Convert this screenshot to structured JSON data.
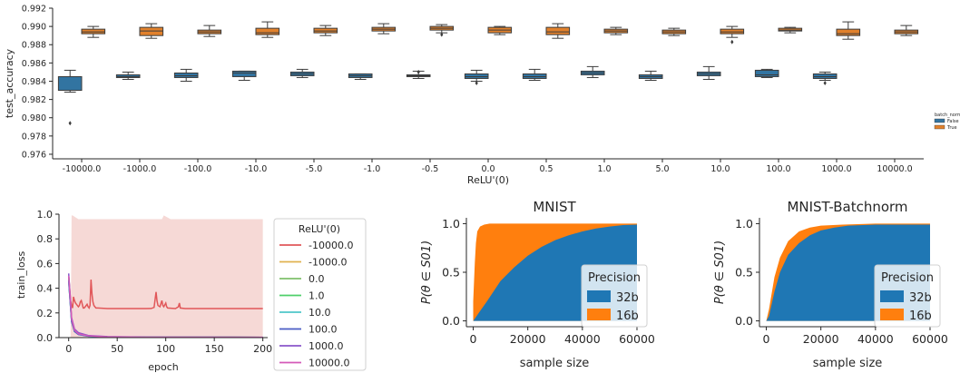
{
  "colors": {
    "false": "#3274a1",
    "true": "#e1812c",
    "s32": "#1f77b4",
    "s16": "#ff7f0e",
    "band": "#f6d9d6"
  },
  "chart_data": [
    {
      "type": "box",
      "ylabel": "test_accuracy",
      "xlabel": "ReLU'(0)",
      "ylim": [
        0.9755,
        0.992
      ],
      "yticks": [
        "0.976",
        "0.978",
        "0.980",
        "0.982",
        "0.984",
        "0.986",
        "0.988",
        "0.990",
        "0.992"
      ],
      "categories": [
        "-10000.0",
        "-1000.0",
        "-100.0",
        "-10.0",
        "-5.0",
        "-1.0",
        "-0.5",
        "0.0",
        "0.5",
        "1.0",
        "5.0",
        "10.0",
        "100.0",
        "1000.0",
        "10000.0"
      ],
      "legend_title": "batch_norm",
      "legend": [
        "False",
        "True"
      ],
      "series": [
        {
          "name": "False",
          "boxes": [
            [
              0.9828,
              0.983,
              0.9845,
              0.9845,
              0.9852,
              [
                0.9794
              ]
            ],
            [
              0.9842,
              0.9844,
              0.9845,
              0.9847,
              0.985,
              []
            ],
            [
              0.984,
              0.9844,
              0.9846,
              0.9849,
              0.9853,
              []
            ],
            [
              0.9841,
              0.9845,
              0.9849,
              0.9851,
              0.9851,
              []
            ],
            [
              0.9844,
              0.9846,
              0.9848,
              0.985,
              0.9853,
              []
            ],
            [
              0.9842,
              0.9844,
              0.9846,
              0.9848,
              0.9848,
              []
            ],
            [
              0.9843,
              0.9845,
              0.9846,
              0.9847,
              0.9851,
              [
                0.985
              ]
            ],
            [
              0.984,
              0.9843,
              0.9845,
              0.9848,
              0.9852,
              [
                0.9838
              ]
            ],
            [
              0.9841,
              0.9843,
              0.9845,
              0.9848,
              0.9853,
              []
            ],
            [
              0.9844,
              0.9847,
              0.9849,
              0.9851,
              0.9856,
              []
            ],
            [
              0.9841,
              0.9843,
              0.9845,
              0.9847,
              0.9851,
              []
            ],
            [
              0.9842,
              0.9846,
              0.9848,
              0.985,
              0.9856,
              []
            ],
            [
              0.9844,
              0.9845,
              0.9847,
              0.9852,
              0.9853,
              []
            ],
            [
              0.9841,
              0.9843,
              0.9845,
              0.9848,
              0.985,
              [
                0.9838
              ]
            ],
            [
              null,
              null,
              null,
              null,
              null,
              []
            ]
          ]
        },
        {
          "name": "True",
          "boxes": [
            [
              0.9888,
              0.9892,
              0.9894,
              0.9897,
              0.99,
              []
            ],
            [
              0.9887,
              0.989,
              0.9895,
              0.9899,
              0.9903,
              []
            ],
            [
              0.9889,
              0.9892,
              0.9894,
              0.9896,
              0.9901,
              []
            ],
            [
              0.9888,
              0.9891,
              0.9893,
              0.9898,
              0.9905,
              []
            ],
            [
              0.989,
              0.9893,
              0.9895,
              0.9898,
              0.9901,
              []
            ],
            [
              0.9892,
              0.9895,
              0.9897,
              0.9899,
              0.9903,
              []
            ],
            [
              0.9893,
              0.9896,
              0.9898,
              0.99,
              0.9902,
              [
                0.9891
              ]
            ],
            [
              0.9891,
              0.9893,
              0.9896,
              0.9899,
              0.99,
              []
            ],
            [
              0.9887,
              0.9891,
              0.9894,
              0.9899,
              0.9903,
              []
            ],
            [
              0.9891,
              0.9893,
              0.9895,
              0.9897,
              0.9899,
              []
            ],
            [
              0.989,
              0.9892,
              0.9894,
              0.9896,
              0.9898,
              []
            ],
            [
              0.9888,
              0.9892,
              0.9894,
              0.9897,
              0.99,
              [
                0.9883
              ]
            ],
            [
              0.9893,
              0.9895,
              0.9896,
              0.9898,
              0.9899,
              []
            ],
            [
              0.9886,
              0.989,
              0.9892,
              0.9897,
              0.9905,
              []
            ],
            [
              0.989,
              0.9892,
              0.9894,
              0.9896,
              0.9901,
              []
            ]
          ]
        }
      ]
    },
    {
      "type": "line",
      "xlabel": "epoch",
      "ylabel": "train_loss",
      "xlim": [
        -10,
        205
      ],
      "ylim": [
        0,
        1.0
      ],
      "xticks": [
        "0",
        "50",
        "100",
        "150",
        "200"
      ],
      "yticks": [
        "0.0",
        "0.2",
        "0.4",
        "0.6",
        "0.8",
        "1.0"
      ],
      "legend_title": "ReLU'(0)",
      "series": [
        {
          "name": "-10000.0",
          "color": "#e15759",
          "points": [
            [
              0,
              0.5
            ],
            [
              1,
              0.4
            ],
            [
              2,
              0.3
            ],
            [
              3,
              0.26
            ],
            [
              4,
              0.24
            ],
            [
              5,
              0.33
            ],
            [
              6,
              0.3
            ],
            [
              7,
              0.28
            ],
            [
              8,
              0.27
            ],
            [
              9,
              0.26
            ],
            [
              10,
              0.25
            ],
            [
              11,
              0.26
            ],
            [
              12,
              0.29
            ],
            [
              13,
              0.3
            ],
            [
              14,
              0.27
            ],
            [
              15,
              0.24
            ],
            [
              16,
              0.24
            ],
            [
              17,
              0.25
            ],
            [
              18,
              0.26
            ],
            [
              19,
              0.27
            ],
            [
              20,
              0.25
            ],
            [
              21,
              0.24
            ],
            [
              22,
              0.26
            ],
            [
              23,
              0.47
            ],
            [
              24,
              0.35
            ],
            [
              25,
              0.29
            ],
            [
              26,
              0.26
            ],
            [
              27,
              0.25
            ],
            [
              28,
              0.24
            ],
            [
              30,
              0.24
            ],
            [
              40,
              0.235
            ],
            [
              50,
              0.235
            ],
            [
              60,
              0.235
            ],
            [
              70,
              0.235
            ],
            [
              80,
              0.235
            ],
            [
              85,
              0.236
            ],
            [
              88,
              0.245
            ],
            [
              90,
              0.37
            ],
            [
              91,
              0.3
            ],
            [
              92,
              0.26
            ],
            [
              94,
              0.25
            ],
            [
              96,
              0.3
            ],
            [
              97,
              0.26
            ],
            [
              98,
              0.25
            ],
            [
              100,
              0.28
            ],
            [
              101,
              0.25
            ],
            [
              102,
              0.24
            ],
            [
              110,
              0.235
            ],
            [
              113,
              0.25
            ],
            [
              114,
              0.28
            ],
            [
              115,
              0.24
            ],
            [
              120,
              0.235
            ],
            [
              140,
              0.235
            ],
            [
              160,
              0.235
            ],
            [
              180,
              0.235
            ],
            [
              200,
              0.235
            ]
          ]
        },
        {
          "name": "-1000.0",
          "color": "#e0b24f",
          "points": [
            [
              0,
              0.5
            ],
            [
              3,
              0.15
            ],
            [
              6,
              0.06
            ],
            [
              10,
              0.03
            ],
            [
              20,
              0.015
            ],
            [
              40,
              0.006
            ],
            [
              80,
              0.003
            ],
            [
              200,
              0.002
            ]
          ]
        },
        {
          "name": "0.0",
          "color": "#7fc16b",
          "points": [
            [
              0,
              0.48
            ],
            [
              3,
              0.14
            ],
            [
              6,
              0.06
            ],
            [
              10,
              0.03
            ],
            [
              20,
              0.014
            ],
            [
              40,
              0.006
            ],
            [
              80,
              0.003
            ],
            [
              200,
              0.002
            ]
          ]
        },
        {
          "name": "1.0",
          "color": "#4fcf6a",
          "points": [
            [
              0,
              0.47
            ],
            [
              3,
              0.13
            ],
            [
              6,
              0.05
            ],
            [
              10,
              0.03
            ],
            [
              20,
              0.013
            ],
            [
              40,
              0.005
            ],
            [
              80,
              0.003
            ],
            [
              200,
              0.002
            ]
          ]
        },
        {
          "name": "10.0",
          "color": "#4ec7c9",
          "points": [
            [
              0,
              0.46
            ],
            [
              3,
              0.13
            ],
            [
              6,
              0.05
            ],
            [
              10,
              0.025
            ],
            [
              20,
              0.012
            ],
            [
              40,
              0.005
            ],
            [
              80,
              0.003
            ],
            [
              200,
              0.002
            ]
          ]
        },
        {
          "name": "100.0",
          "color": "#4a5cc5",
          "points": [
            [
              0,
              0.46
            ],
            [
              3,
              0.13
            ],
            [
              6,
              0.05
            ],
            [
              10,
              0.025
            ],
            [
              20,
              0.012
            ],
            [
              40,
              0.005
            ],
            [
              80,
              0.003
            ],
            [
              200,
              0.002
            ]
          ]
        },
        {
          "name": "1000.0",
          "color": "#8a56c9",
          "points": [
            [
              0,
              0.52
            ],
            [
              3,
              0.16
            ],
            [
              6,
              0.07
            ],
            [
              10,
              0.04
            ],
            [
              20,
              0.018
            ],
            [
              40,
              0.008
            ],
            [
              80,
              0.004
            ],
            [
              200,
              0.003
            ]
          ]
        },
        {
          "name": "10000.0",
          "color": "#d45ab8",
          "points": [
            [
              0,
              0.5
            ],
            [
              3,
              0.15
            ],
            [
              6,
              0.06
            ],
            [
              10,
              0.03
            ],
            [
              20,
              0.015
            ],
            [
              40,
              0.006
            ],
            [
              80,
              0.003
            ],
            [
              200,
              0.002
            ]
          ]
        }
      ]
    },
    {
      "type": "area",
      "title": "MNIST",
      "xlabel": "sample size",
      "ylabel": "P(θ ∈ S01)",
      "xlim": [
        -2500,
        62000
      ],
      "ylim": [
        -0.06,
        1.06
      ],
      "xticks": [
        "0",
        "20000",
        "40000",
        "60000"
      ],
      "yticks": [
        "0.0",
        "0.5",
        "1.0"
      ],
      "legend_title": "Precision",
      "legend": [
        "32b",
        "16b"
      ],
      "series": [
        {
          "name": "32b",
          "points": [
            [
              0,
              0
            ],
            [
              2000,
              0.08
            ],
            [
              5000,
              0.2
            ],
            [
              10000,
              0.41
            ],
            [
              15000,
              0.55
            ],
            [
              20000,
              0.67
            ],
            [
              25000,
              0.76
            ],
            [
              30000,
              0.83
            ],
            [
              35000,
              0.88
            ],
            [
              40000,
              0.92
            ],
            [
              45000,
              0.95
            ],
            [
              50000,
              0.97
            ],
            [
              55000,
              0.985
            ],
            [
              60000,
              0.99
            ]
          ]
        },
        {
          "name": "16b",
          "points": [
            [
              0,
              0.2
            ],
            [
              300,
              0.4
            ],
            [
              600,
              0.6
            ],
            [
              1000,
              0.8
            ],
            [
              1500,
              0.92
            ],
            [
              2500,
              0.97
            ],
            [
              4000,
              0.99
            ],
            [
              6000,
              1.0
            ],
            [
              60000,
              1.0
            ]
          ]
        }
      ]
    },
    {
      "type": "area",
      "title": "MNIST-Batchnorm",
      "xlabel": "sample size",
      "ylabel": "P(θ ∈ S01)",
      "xlim": [
        -2500,
        62000
      ],
      "ylim": [
        -0.06,
        1.06
      ],
      "xticks": [
        "0",
        "20000",
        "40000",
        "60000"
      ],
      "yticks": [
        "0.0",
        "0.5",
        "1.0"
      ],
      "legend_title": "Precision",
      "legend": [
        "32b",
        "16b"
      ],
      "series": [
        {
          "name": "32b",
          "points": [
            [
              0,
              0
            ],
            [
              1000,
              0.05
            ],
            [
              3000,
              0.3
            ],
            [
              5000,
              0.5
            ],
            [
              8000,
              0.68
            ],
            [
              12000,
              0.8
            ],
            [
              16000,
              0.88
            ],
            [
              20000,
              0.93
            ],
            [
              25000,
              0.96
            ],
            [
              30000,
              0.98
            ],
            [
              40000,
              0.99
            ],
            [
              60000,
              0.99
            ]
          ]
        },
        {
          "name": "16b",
          "points": [
            [
              0,
              0
            ],
            [
              1000,
              0.12
            ],
            [
              3000,
              0.45
            ],
            [
              5000,
              0.65
            ],
            [
              8000,
              0.82
            ],
            [
              12000,
              0.92
            ],
            [
              16000,
              0.96
            ],
            [
              20000,
              0.98
            ],
            [
              28000,
              0.99
            ],
            [
              40000,
              1.0
            ],
            [
              60000,
              1.0
            ]
          ]
        }
      ]
    }
  ]
}
